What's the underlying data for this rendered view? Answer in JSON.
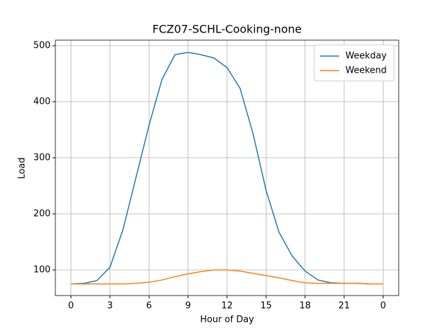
{
  "chart_data": {
    "type": "line",
    "title": "FCZ07-SCHL-Cooking-none",
    "xlabel": "Hour of Day",
    "ylabel": "Load",
    "x": [
      0,
      1,
      2,
      3,
      4,
      5,
      6,
      7,
      8,
      9,
      10,
      11,
      12,
      13,
      14,
      15,
      16,
      17,
      18,
      19,
      20,
      21,
      22,
      23,
      24
    ],
    "series": [
      {
        "name": "Weekday",
        "color": "#1f77b4",
        "values": [
          75,
          76,
          81,
          105,
          172,
          265,
          358,
          440,
          484,
          488,
          484,
          478,
          461,
          424,
          343,
          242,
          167,
          125,
          98,
          82,
          77,
          76,
          76,
          75,
          75
        ]
      },
      {
        "name": "Weekend",
        "color": "#ff7f0e",
        "values": [
          75,
          75,
          75,
          75,
          75,
          76,
          78,
          82,
          88,
          93,
          97,
          100,
          100,
          98,
          94,
          90,
          86,
          81,
          77,
          76,
          76,
          76,
          76,
          75,
          75
        ]
      }
    ],
    "xlim": [
      -1.2,
      25.2
    ],
    "xticks": [
      0,
      3,
      6,
      9,
      12,
      15,
      18,
      21,
      {
        "value": 24,
        "label": "0"
      }
    ],
    "ylim": [
      54.3,
      509.9
    ],
    "yticks": [
      100,
      200,
      300,
      400,
      500
    ],
    "grid": true,
    "legend": "upper-right"
  }
}
